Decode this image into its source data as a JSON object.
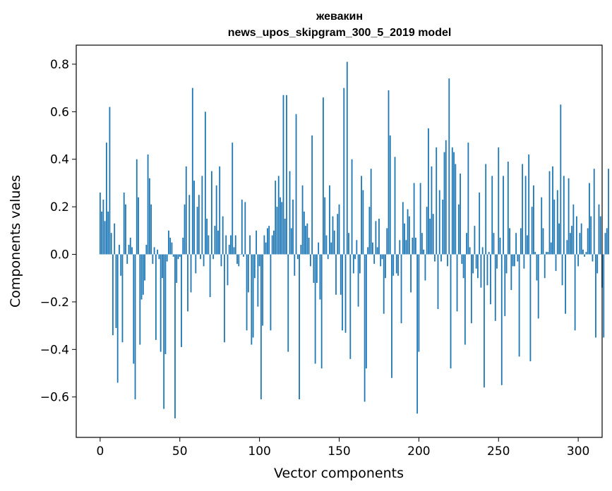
{
  "chart_data": {
    "type": "bar",
    "title_line1": "жевакин",
    "title_line2": "news_upos_skipgram_300_5_2019 model",
    "xlabel": "Vector components",
    "ylabel": "Components values",
    "xlim": [
      -15,
      315
    ],
    "ylim": [
      -0.77,
      0.88
    ],
    "xticks": [
      0,
      50,
      100,
      150,
      200,
      250,
      300
    ],
    "xtick_labels": [
      "0",
      "50",
      "100",
      "150",
      "200",
      "250",
      "300"
    ],
    "yticks": [
      -0.6,
      -0.4,
      -0.2,
      0.0,
      0.2,
      0.4,
      0.6,
      0.8
    ],
    "ytick_labels": [
      "−0.6",
      "−0.4",
      "−0.2",
      "0.0",
      "0.2",
      "0.4",
      "0.6",
      "0.8"
    ],
    "bar_color": "#1f77b4",
    "grid": false,
    "values": [
      0.26,
      0.18,
      0.23,
      0.14,
      0.47,
      0.18,
      0.62,
      0.09,
      -0.34,
      0.13,
      -0.31,
      -0.54,
      0.04,
      -0.09,
      -0.37,
      0.26,
      0.21,
      -0.04,
      0.04,
      0.07,
      0.03,
      -0.46,
      -0.61,
      0.4,
      0.24,
      -0.38,
      -0.19,
      -0.17,
      -0.11,
      0.04,
      0.42,
      0.32,
      0.21,
      -0.04,
      0.03,
      -0.36,
      0.02,
      -0.02,
      -0.41,
      -0.1,
      -0.65,
      -0.42,
      -0.03,
      0.1,
      0.07,
      0.05,
      -0.01,
      -0.69,
      -0.12,
      -0.02,
      -0.01,
      -0.39,
      0.07,
      0.21,
      0.37,
      -0.24,
      0.25,
      -0.16,
      0.7,
      0.31,
      -0.08,
      0.2,
      0.25,
      -0.02,
      0.33,
      -0.05,
      0.6,
      0.15,
      0.08,
      -0.18,
      0.35,
      -0.02,
      0.12,
      0.29,
      0.1,
      0.37,
      -0.05,
      0.16,
      -0.37,
      0.08,
      -0.13,
      0.04,
      0.08,
      0.47,
      0.03,
      0.08,
      -0.04,
      -0.05,
      0.0,
      0.23,
      -0.01,
      0.22,
      -0.32,
      -0.16,
      0.08,
      -0.38,
      -0.35,
      -0.1,
      0.1,
      -0.22,
      -0.05,
      -0.61,
      -0.3,
      0.08,
      0.05,
      0.11,
      0.12,
      -0.32,
      0.08,
      0.1,
      0.31,
      0.2,
      0.33,
      0.24,
      0.22,
      0.67,
      0.15,
      0.67,
      -0.41,
      0.35,
      0.11,
      0.23,
      -0.09,
      0.59,
      -0.02,
      -0.61,
      0.04,
      0.29,
      0.18,
      0.12,
      0.13,
      0.07,
      -0.05,
      0.5,
      -0.12,
      -0.46,
      -0.12,
      0.05,
      -0.19,
      -0.48,
      0.66,
      0.24,
      0.08,
      -0.02,
      0.29,
      0.05,
      0.16,
      0.1,
      -0.17,
      0.17,
      0.21,
      -0.17,
      -0.32,
      0.7,
      -0.33,
      0.81,
      0.09,
      -0.44,
      0.4,
      -0.08,
      -0.02,
      0.06,
      -0.22,
      -0.08,
      0.33,
      0.27,
      -0.62,
      -0.48,
      0.03,
      0.2,
      0.36,
      0.05,
      -0.04,
      0.14,
      0.03,
      0.15,
      -0.05,
      -0.02,
      -0.25,
      -0.1,
      0.11,
      0.69,
      0.5,
      -0.52,
      -0.09,
      0.41,
      -0.08,
      -0.09,
      0.06,
      -0.29,
      0.22,
      0.13,
      0.06,
      0.19,
      0.16,
      -0.16,
      0.07,
      0.3,
      0.07,
      -0.67,
      -0.41,
      0.3,
      0.09,
      0.02,
      -0.11,
      0.2,
      0.53,
      0.15,
      0.37,
      0.17,
      -0.03,
      0.45,
      -0.23,
      0.27,
      -0.03,
      0.23,
      0.43,
      0.48,
      -0.05,
      0.74,
      -0.48,
      0.45,
      0.43,
      0.38,
      -0.24,
      0.21,
      0.34,
      -0.04,
      -0.1,
      -0.38,
      0.09,
      0.47,
      0.03,
      -0.29,
      -0.08,
      0.12,
      -0.06,
      -0.1,
      0.26,
      -0.14,
      0.03,
      -0.56,
      0.38,
      -0.13,
      0.01,
      -0.21,
      0.33,
      0.09,
      -0.28,
      -0.06,
      0.45,
      0.07,
      -0.55,
      0.33,
      -0.26,
      -0.08,
      0.39,
      0.11,
      -0.15,
      -0.05,
      -0.05,
      0.09,
      -0.03,
      -0.43,
      0.11,
      0.38,
      -0.06,
      0.33,
      0.08,
      0.42,
      -0.45,
      0.2,
      0.29,
      0.01,
      -0.11,
      -0.27,
      0.0,
      0.24,
      0.11,
      -0.1,
      0.01,
      0.01,
      0.35,
      0.05,
      0.37,
      0.23,
      -0.07,
      0.27,
      0.13,
      0.63,
      -0.13,
      0.33,
      -0.25,
      0.06,
      0.32,
      0.09,
      0.12,
      0.21,
      -0.32,
      0.16,
      -0.05,
      0.09,
      0.13,
      0.02,
      -0.01,
      0.01,
      0.11,
      0.3,
      0.16,
      -0.03,
      0.36,
      -0.35,
      -0.08,
      0.21,
      0.16,
      -0.14,
      -0.35,
      0.09,
      0.11,
      0.36
    ]
  }
}
